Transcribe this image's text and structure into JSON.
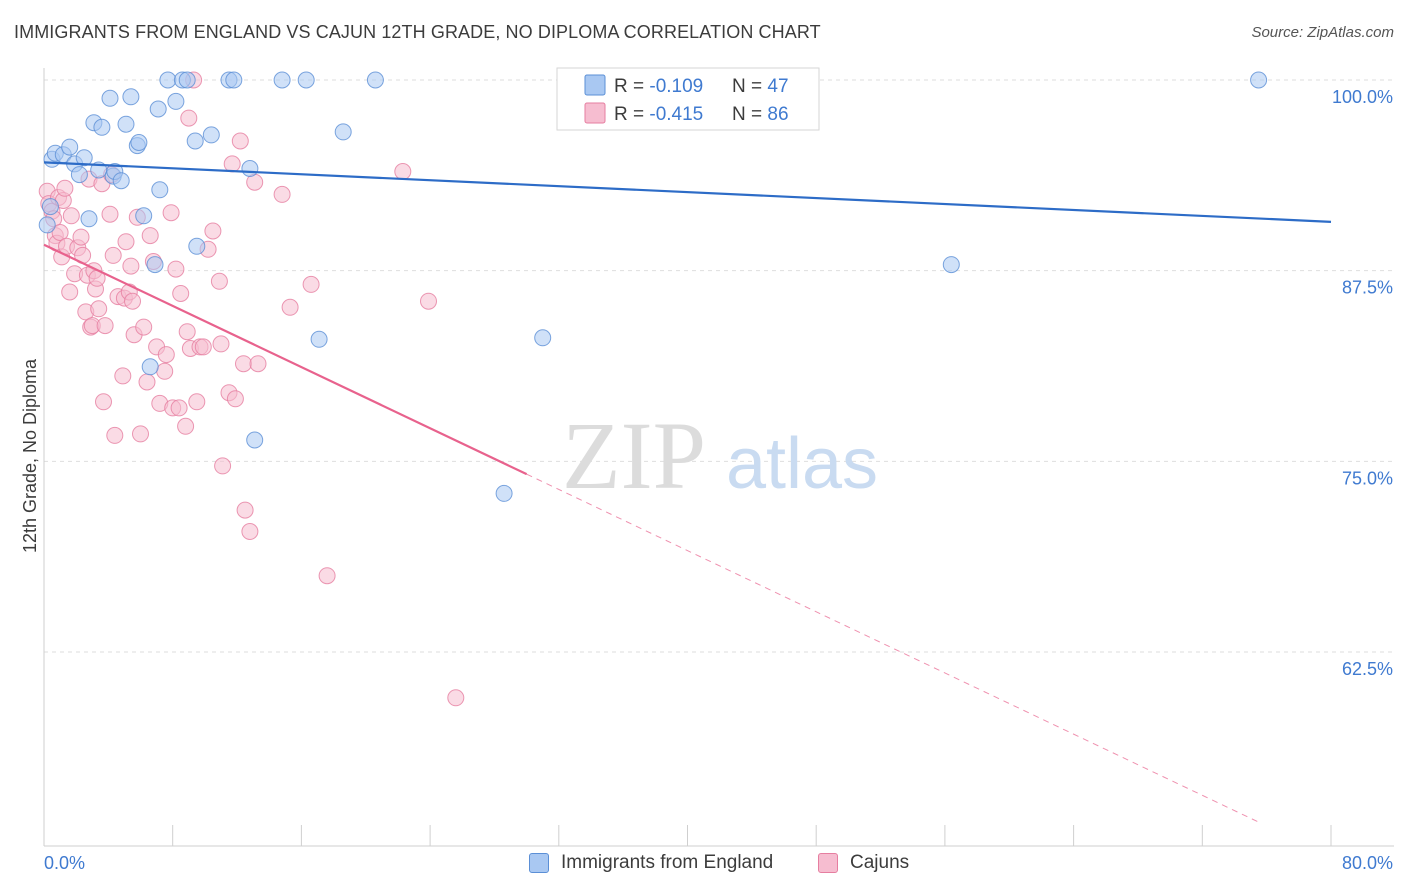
{
  "title": "IMMIGRANTS FROM ENGLAND VS CAJUN 12TH GRADE, NO DIPLOMA CORRELATION CHART",
  "source": "Source: ZipAtlas.com",
  "watermark": {
    "zip": "ZIP",
    "atlas": "atlas"
  },
  "colors": {
    "blue_fill": "#a9c8f2",
    "blue_stroke": "#5b8fd6",
    "blue_line": "#2d6cc7",
    "pink_fill": "#f6bdd0",
    "pink_stroke": "#e67ea0",
    "pink_line": "#e8628d",
    "axis_text": "#3f7ad0",
    "grid": "#dedede"
  },
  "legend_top": {
    "rows": [
      {
        "r_label": "R = ",
        "r_value": "-0.109",
        "n_label": "N = ",
        "n_value": "47"
      },
      {
        "r_label": "R = ",
        "r_value": "-0.415",
        "n_label": "N = ",
        "n_value": "86"
      }
    ]
  },
  "legend_bottom": [
    {
      "label": "Immigrants from England"
    },
    {
      "label": "Cajuns"
    }
  ],
  "chart_data": {
    "type": "scatter",
    "title": "IMMIGRANTS FROM ENGLAND VS CAJUN 12TH GRADE, NO DIPLOMA CORRELATION CHART",
    "xlabel": "",
    "ylabel": "12th Grade, No Diploma",
    "xlim": [
      0,
      80
    ],
    "ylim": [
      51.3,
      101.2
    ],
    "x_tick_labels": [
      "0.0%",
      "80.0%"
    ],
    "y_ticks": [
      62.5,
      75.0,
      87.5,
      100.0
    ],
    "y_tick_labels": [
      "62.5%",
      "75.0%",
      "87.5%",
      "100.0%"
    ],
    "grid": true,
    "series": [
      {
        "name": "Immigrants from England",
        "r": -0.109,
        "n": 47,
        "trend": {
          "x0": 0,
          "y0": 94.6,
          "x1": 80,
          "y1": 90.7,
          "solid_to": 80
        },
        "points": [
          [
            0.5,
            94.8
          ],
          [
            0.7,
            95.2
          ],
          [
            1.2,
            95.1
          ],
          [
            1.6,
            95.6
          ],
          [
            1.9,
            94.5
          ],
          [
            2.2,
            93.8
          ],
          [
            2.5,
            94.9
          ],
          [
            2.8,
            90.9
          ],
          [
            3.1,
            97.2
          ],
          [
            3.4,
            94.1
          ],
          [
            3.6,
            96.9
          ],
          [
            4.1,
            98.8
          ],
          [
            4.3,
            93.7
          ],
          [
            4.4,
            94.0
          ],
          [
            4.8,
            93.4
          ],
          [
            5.1,
            97.1
          ],
          [
            5.4,
            98.9
          ],
          [
            5.8,
            95.7
          ],
          [
            5.9,
            95.9
          ],
          [
            6.2,
            91.1
          ],
          [
            6.6,
            81.2
          ],
          [
            6.9,
            87.9
          ],
          [
            7.1,
            98.1
          ],
          [
            7.2,
            92.8
          ],
          [
            7.7,
            100.0
          ],
          [
            8.2,
            98.6
          ],
          [
            8.6,
            100.0
          ],
          [
            8.9,
            100.0
          ],
          [
            9.4,
            96.0
          ],
          [
            9.5,
            89.1
          ],
          [
            10.4,
            96.4
          ],
          [
            11.5,
            100.0
          ],
          [
            11.8,
            100.0
          ],
          [
            12.8,
            94.2
          ],
          [
            13.1,
            76.4
          ],
          [
            14.8,
            100.0
          ],
          [
            16.3,
            100.0
          ],
          [
            17.1,
            83.0
          ],
          [
            18.6,
            96.6
          ],
          [
            20.6,
            100.0
          ],
          [
            28.6,
            72.9
          ],
          [
            31.0,
            83.1
          ],
          [
            33.0,
            100.0
          ],
          [
            56.4,
            87.9
          ],
          [
            75.5,
            100.0
          ],
          [
            0.2,
            90.5
          ],
          [
            0.4,
            91.7
          ]
        ]
      },
      {
        "name": "Cajuns",
        "r": -0.415,
        "n": 86,
        "trend": {
          "x0": 0,
          "y0": 89.2,
          "x1": 75.6,
          "y1": 51.3,
          "solid_to": 30.0
        },
        "points": [
          [
            0.2,
            92.7
          ],
          [
            0.3,
            91.9
          ],
          [
            0.5,
            91.4
          ],
          [
            0.6,
            90.9
          ],
          [
            0.7,
            89.8
          ],
          [
            0.8,
            89.3
          ],
          [
            0.9,
            92.3
          ],
          [
            1.0,
            90.0
          ],
          [
            1.1,
            88.4
          ],
          [
            1.2,
            92.1
          ],
          [
            1.3,
            92.9
          ],
          [
            1.4,
            89.1
          ],
          [
            1.6,
            86.1
          ],
          [
            1.7,
            91.1
          ],
          [
            1.9,
            87.3
          ],
          [
            2.1,
            89.0
          ],
          [
            2.3,
            89.7
          ],
          [
            2.4,
            88.5
          ],
          [
            2.6,
            84.8
          ],
          [
            2.7,
            87.2
          ],
          [
            2.8,
            93.5
          ],
          [
            2.9,
            83.8
          ],
          [
            3.0,
            83.9
          ],
          [
            3.1,
            87.5
          ],
          [
            3.2,
            86.3
          ],
          [
            3.3,
            87.0
          ],
          [
            3.4,
            85.0
          ],
          [
            3.6,
            93.2
          ],
          [
            3.7,
            78.9
          ],
          [
            3.8,
            83.9
          ],
          [
            4.1,
            91.2
          ],
          [
            4.2,
            93.8
          ],
          [
            4.3,
            88.5
          ],
          [
            4.4,
            76.7
          ],
          [
            4.6,
            85.8
          ],
          [
            4.9,
            80.6
          ],
          [
            5.0,
            85.7
          ],
          [
            5.1,
            89.4
          ],
          [
            5.3,
            86.1
          ],
          [
            5.4,
            87.8
          ],
          [
            5.5,
            85.5
          ],
          [
            5.6,
            83.3
          ],
          [
            5.8,
            91.0
          ],
          [
            6.0,
            76.8
          ],
          [
            6.2,
            83.8
          ],
          [
            6.4,
            80.2
          ],
          [
            6.6,
            89.8
          ],
          [
            6.8,
            88.1
          ],
          [
            7.0,
            82.5
          ],
          [
            7.2,
            78.8
          ],
          [
            7.5,
            80.9
          ],
          [
            7.6,
            82.0
          ],
          [
            7.9,
            91.3
          ],
          [
            8.0,
            78.5
          ],
          [
            8.2,
            87.6
          ],
          [
            8.4,
            78.5
          ],
          [
            8.5,
            86.0
          ],
          [
            8.8,
            77.3
          ],
          [
            8.9,
            83.5
          ],
          [
            9.0,
            97.5
          ],
          [
            9.1,
            82.4
          ],
          [
            9.5,
            78.9
          ],
          [
            9.7,
            82.5
          ],
          [
            9.9,
            82.5
          ],
          [
            10.2,
            88.9
          ],
          [
            10.5,
            90.1
          ],
          [
            10.9,
            86.8
          ],
          [
            11.0,
            82.7
          ],
          [
            11.1,
            74.7
          ],
          [
            11.5,
            79.5
          ],
          [
            11.7,
            94.5
          ],
          [
            11.9,
            79.1
          ],
          [
            12.2,
            96.0
          ],
          [
            12.4,
            81.4
          ],
          [
            12.5,
            71.8
          ],
          [
            12.8,
            70.4
          ],
          [
            13.1,
            93.3
          ],
          [
            13.3,
            81.4
          ],
          [
            14.8,
            92.5
          ],
          [
            15.3,
            85.1
          ],
          [
            16.6,
            86.6
          ],
          [
            17.6,
            67.5
          ],
          [
            22.3,
            94.0
          ],
          [
            23.9,
            85.5
          ],
          [
            25.6,
            59.5
          ],
          [
            9.3,
            100.0
          ]
        ]
      }
    ]
  }
}
